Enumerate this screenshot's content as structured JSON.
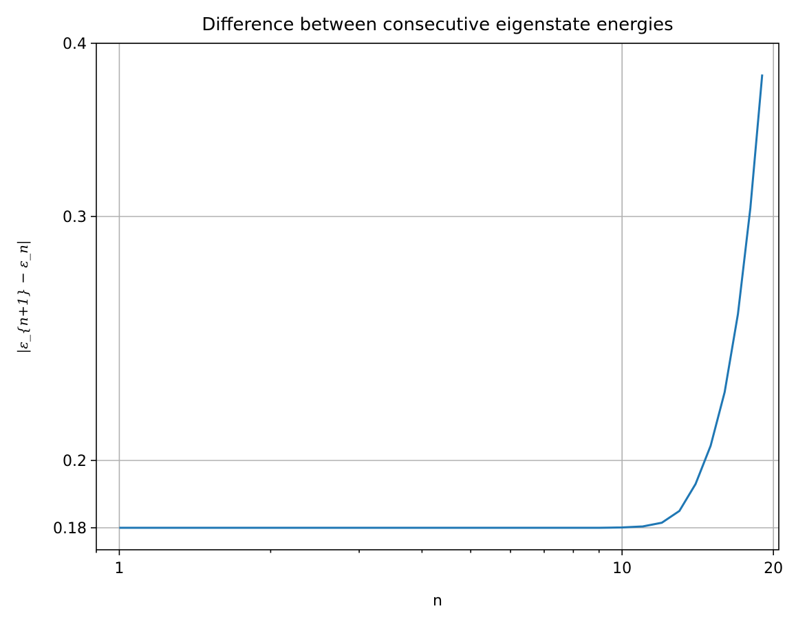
{
  "chart_data": {
    "type": "line",
    "title": "Difference between consecutive eigenstate energies",
    "xlabel": "n",
    "ylabel": "|ε_{n+1} − ε_n|",
    "x_scale": "log",
    "y_scale": "nonlinear",
    "xlim": [
      0.9,
      20.5
    ],
    "ylim": [
      0.174,
      0.4
    ],
    "x_ticks": [
      1,
      10,
      20
    ],
    "x_tick_labels": [
      "1",
      "10",
      "20"
    ],
    "y_ticks": [
      0.18,
      0.2,
      0.3,
      0.4
    ],
    "y_tick_labels": [
      "0.18",
      "0.2",
      "0.3",
      "0.4"
    ],
    "grid": true,
    "line_color": "#1f77b4",
    "series": [
      {
        "x": [
          1,
          2,
          3,
          4,
          5,
          6,
          7,
          8,
          9,
          10,
          11,
          12,
          13,
          14,
          15,
          16,
          17,
          18,
          19
        ],
        "y": [
          0.18,
          0.18,
          0.18,
          0.18,
          0.18,
          0.18,
          0.18,
          0.18,
          0.18,
          0.1801,
          0.1804,
          0.1815,
          0.185,
          0.193,
          0.206,
          0.228,
          0.26,
          0.305,
          0.382
        ]
      }
    ]
  }
}
